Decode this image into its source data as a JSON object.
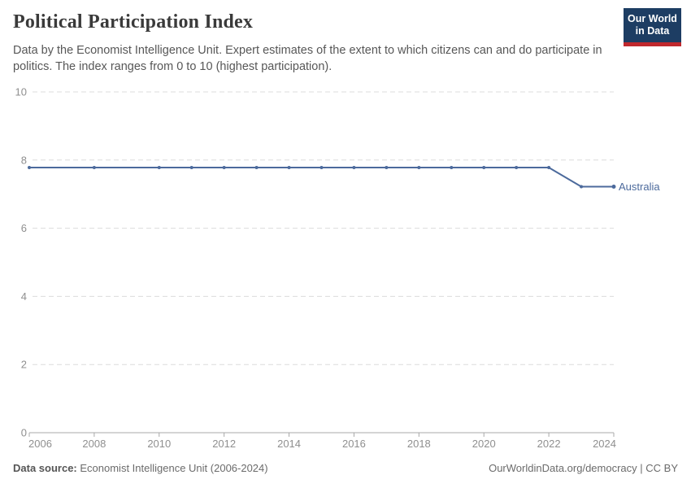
{
  "header": {
    "title": "Political Participation Index",
    "subtitle": "Data by the Economist Intelligence Unit. Expert estimates of the extent to which citizens can and do participate in politics. The index ranges from 0 to 10 (highest participation).",
    "logo_line1": "Our World",
    "logo_line2": "in Data"
  },
  "chart_data": {
    "type": "line",
    "title": "Political Participation Index",
    "x": [
      2006,
      2008,
      2010,
      2011,
      2012,
      2013,
      2014,
      2015,
      2016,
      2017,
      2018,
      2019,
      2020,
      2021,
      2022,
      2023,
      2024
    ],
    "series": [
      {
        "name": "Australia",
        "color": "#4c6a9c",
        "values": [
          7.78,
          7.78,
          7.78,
          7.78,
          7.78,
          7.78,
          7.78,
          7.78,
          7.78,
          7.78,
          7.78,
          7.78,
          7.78,
          7.78,
          7.78,
          7.22,
          7.22
        ]
      }
    ],
    "xlabel": "",
    "ylabel": "",
    "ylim": [
      0,
      10
    ],
    "yticks": [
      0,
      2,
      4,
      6,
      8,
      10
    ],
    "xticks": [
      2006,
      2008,
      2010,
      2012,
      2014,
      2016,
      2018,
      2020,
      2022,
      2024
    ],
    "grid": "horizontal-dashed",
    "legend_position": "end-of-line"
  },
  "footer": {
    "source_label": "Data source:",
    "source_text": " Economist Intelligence Unit (2006-2024)",
    "url": "OurWorldinData.org/democracy",
    "divider": " | ",
    "license": "CC BY"
  },
  "colors": {
    "line": "#4c6a9c",
    "grid": "#dcdcdc",
    "axis": "#a8a8a8",
    "tick_label": "#8f8f8f",
    "logo_bg": "#1d3d63",
    "logo_accent": "#c0282d"
  }
}
